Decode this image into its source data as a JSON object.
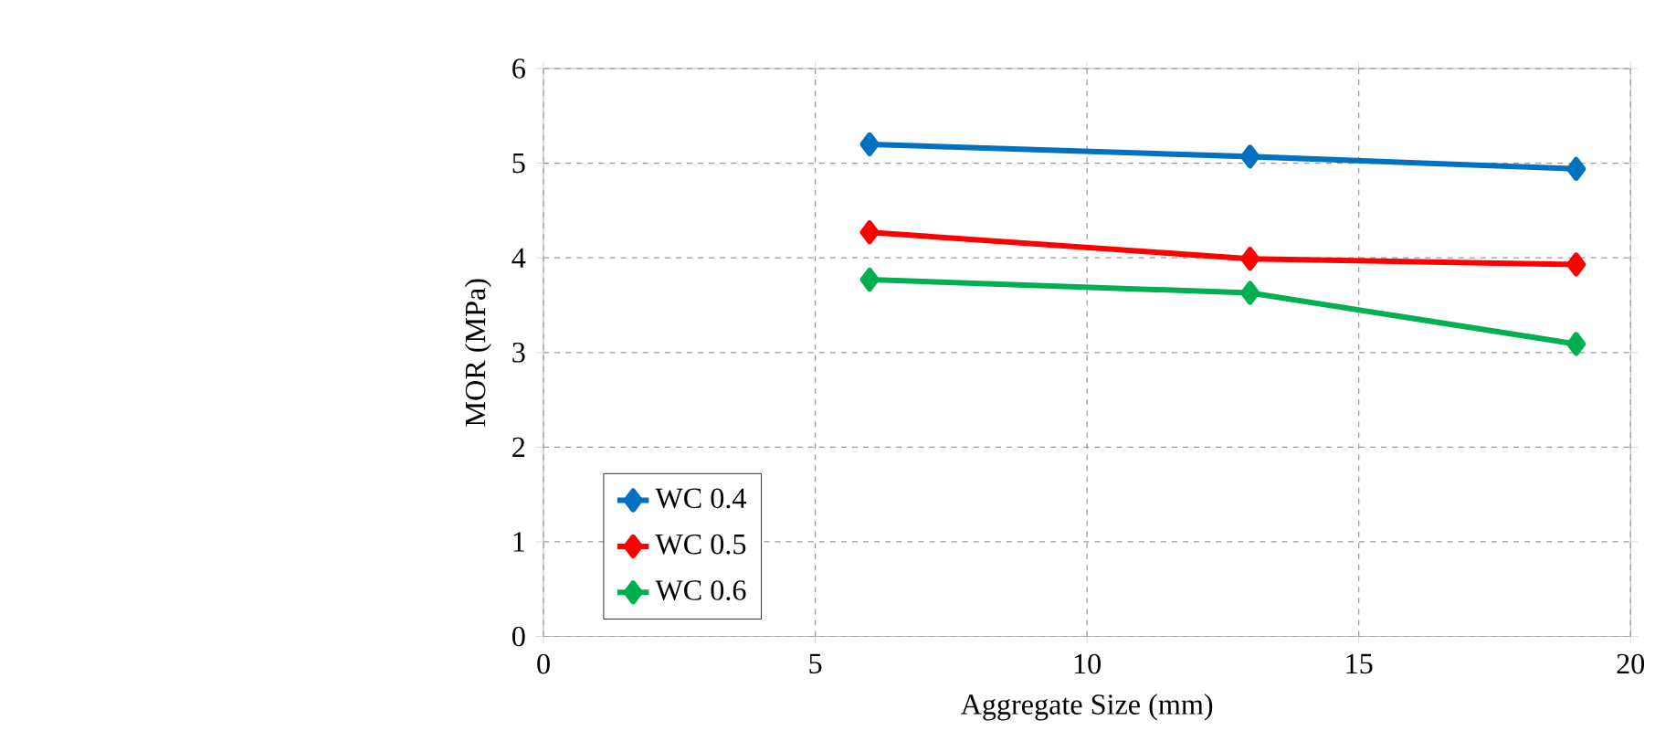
{
  "chart_data": {
    "type": "line",
    "xlabel": "Aggregate Size (mm)",
    "ylabel": "MOR (MPa)",
    "x": [
      6,
      13,
      19
    ],
    "series": [
      {
        "name": "WC 0.4",
        "color": "#0070c0",
        "values": [
          5.2,
          5.07,
          4.94
        ]
      },
      {
        "name": "WC 0.5",
        "color": "#ff0000",
        "values": [
          4.27,
          3.99,
          3.93
        ]
      },
      {
        "name": "WC 0.6",
        "color": "#00b050",
        "values": [
          3.77,
          3.63,
          3.09
        ]
      }
    ],
    "xlim": [
      0,
      20
    ],
    "xticks": [
      0,
      5,
      10,
      15,
      20
    ],
    "ylim": [
      0,
      6
    ],
    "yticks": [
      0,
      1,
      2,
      3,
      4,
      5,
      6
    ],
    "grid": true,
    "legend": "bottom left",
    "marker": "diamond",
    "line_style": "solid"
  }
}
